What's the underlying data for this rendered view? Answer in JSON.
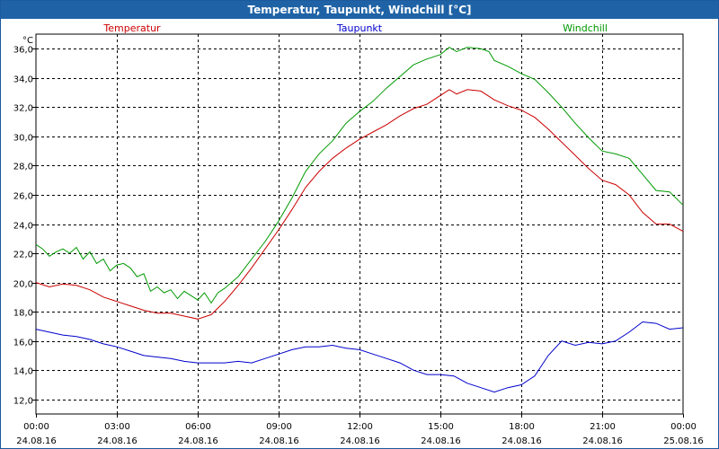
{
  "window": {
    "title": "Temperatur, Taupunkt, Windchill [°C]"
  },
  "chart_data": {
    "type": "line",
    "title": "Temperatur, Taupunkt, Windchill [°C]",
    "ylabel": "°C",
    "xlabel": "",
    "ylim": [
      11,
      37
    ],
    "xlim": [
      0,
      24
    ],
    "x_unit": "hours since 24.08.16 00:00",
    "grid": true,
    "legend": "top",
    "x_ticks": [
      {
        "x": 0,
        "time": "00:00",
        "date": "24.08.16"
      },
      {
        "x": 3,
        "time": "03:00",
        "date": "24.08.16"
      },
      {
        "x": 6,
        "time": "06:00",
        "date": "24.08.16"
      },
      {
        "x": 9,
        "time": "09:00",
        "date": "24.08.16"
      },
      {
        "x": 12,
        "time": "12:00",
        "date": "24.08.16"
      },
      {
        "x": 15,
        "time": "15:00",
        "date": "24.08.16"
      },
      {
        "x": 18,
        "time": "18:00",
        "date": "24.08.16"
      },
      {
        "x": 21,
        "time": "21:00",
        "date": "24.08.16"
      },
      {
        "x": 24,
        "time": "00:00",
        "date": "25.08.16"
      }
    ],
    "y_ticks": [
      {
        "v": 12,
        "label": "12,0"
      },
      {
        "v": 14,
        "label": "14,0"
      },
      {
        "v": 16,
        "label": "16,0"
      },
      {
        "v": 18,
        "label": "18,0"
      },
      {
        "v": 20,
        "label": "20,0"
      },
      {
        "v": 22,
        "label": "22,0"
      },
      {
        "v": 24,
        "label": "24,0"
      },
      {
        "v": 26,
        "label": "26,0"
      },
      {
        "v": 28,
        "label": "28,0"
      },
      {
        "v": 30,
        "label": "30,0"
      },
      {
        "v": 32,
        "label": "32,0"
      },
      {
        "v": 34,
        "label": "34,0"
      },
      {
        "v": 36,
        "label": "36,0"
      }
    ],
    "series": [
      {
        "name": "Temperatur",
        "color": "#cc0000",
        "legend_pos": "left",
        "points": [
          [
            0,
            20.0
          ],
          [
            0.5,
            19.7
          ],
          [
            1,
            19.9
          ],
          [
            1.5,
            19.8
          ],
          [
            2,
            19.5
          ],
          [
            2.5,
            19.0
          ],
          [
            3,
            18.7
          ],
          [
            3.5,
            18.4
          ],
          [
            4,
            18.1
          ],
          [
            4.5,
            17.9
          ],
          [
            5,
            17.9
          ],
          [
            5.5,
            17.7
          ],
          [
            6,
            17.5
          ],
          [
            6.5,
            17.8
          ],
          [
            7,
            18.7
          ],
          [
            7.5,
            19.8
          ],
          [
            8,
            21.0
          ],
          [
            8.5,
            22.3
          ],
          [
            9,
            23.6
          ],
          [
            9.5,
            25.0
          ],
          [
            10,
            26.5
          ],
          [
            10.5,
            27.6
          ],
          [
            11,
            28.5
          ],
          [
            11.5,
            29.2
          ],
          [
            12,
            29.8
          ],
          [
            12.5,
            30.3
          ],
          [
            13,
            30.8
          ],
          [
            13.5,
            31.4
          ],
          [
            14,
            31.9
          ],
          [
            14.5,
            32.2
          ],
          [
            15,
            32.8
          ],
          [
            15.33,
            33.2
          ],
          [
            15.6,
            32.9
          ],
          [
            16,
            33.2
          ],
          [
            16.5,
            33.1
          ],
          [
            17,
            32.5
          ],
          [
            17.5,
            32.1
          ],
          [
            18,
            31.8
          ],
          [
            18.5,
            31.3
          ],
          [
            19,
            30.5
          ],
          [
            19.5,
            29.6
          ],
          [
            20,
            28.7
          ],
          [
            20.5,
            27.8
          ],
          [
            21,
            27.0
          ],
          [
            21.5,
            26.7
          ],
          [
            22,
            26.0
          ],
          [
            22.5,
            24.8
          ],
          [
            23,
            24.0
          ],
          [
            23.5,
            24.0
          ],
          [
            24,
            23.5
          ]
        ]
      },
      {
        "name": "Taupunkt",
        "color": "#0000cc",
        "legend_pos": "center",
        "points": [
          [
            0,
            16.8
          ],
          [
            0.5,
            16.6
          ],
          [
            1,
            16.4
          ],
          [
            1.5,
            16.3
          ],
          [
            2,
            16.1
          ],
          [
            2.5,
            15.8
          ],
          [
            3,
            15.6
          ],
          [
            3.5,
            15.3
          ],
          [
            4,
            15.0
          ],
          [
            4.5,
            14.9
          ],
          [
            5,
            14.8
          ],
          [
            5.5,
            14.6
          ],
          [
            6,
            14.5
          ],
          [
            6.5,
            14.5
          ],
          [
            7,
            14.5
          ],
          [
            7.5,
            14.6
          ],
          [
            8,
            14.5
          ],
          [
            8.5,
            14.8
          ],
          [
            9,
            15.1
          ],
          [
            9.5,
            15.4
          ],
          [
            10,
            15.6
          ],
          [
            10.5,
            15.6
          ],
          [
            11,
            15.7
          ],
          [
            11.5,
            15.5
          ],
          [
            12,
            15.4
          ],
          [
            12.5,
            15.1
          ],
          [
            13,
            14.8
          ],
          [
            13.5,
            14.5
          ],
          [
            14,
            14.0
          ],
          [
            14.5,
            13.7
          ],
          [
            15,
            13.7
          ],
          [
            15.5,
            13.6
          ],
          [
            16,
            13.1
          ],
          [
            16.5,
            12.8
          ],
          [
            17,
            12.5
          ],
          [
            17.5,
            12.8
          ],
          [
            18,
            13.0
          ],
          [
            18.5,
            13.6
          ],
          [
            19,
            15.0
          ],
          [
            19.5,
            16.0
          ],
          [
            20,
            15.7
          ],
          [
            20.5,
            15.9
          ],
          [
            21,
            15.8
          ],
          [
            21.5,
            16.0
          ],
          [
            22,
            16.6
          ],
          [
            22.5,
            17.3
          ],
          [
            23,
            17.2
          ],
          [
            23.5,
            16.8
          ],
          [
            24,
            16.9
          ]
        ]
      },
      {
        "name": "Windchill",
        "color": "#009900",
        "legend_pos": "right",
        "points": [
          [
            0,
            22.6
          ],
          [
            0.25,
            22.3
          ],
          [
            0.5,
            21.8
          ],
          [
            0.75,
            22.1
          ],
          [
            1,
            22.3
          ],
          [
            1.25,
            22.0
          ],
          [
            1.5,
            22.4
          ],
          [
            1.75,
            21.6
          ],
          [
            2,
            22.1
          ],
          [
            2.25,
            21.3
          ],
          [
            2.5,
            21.6
          ],
          [
            2.75,
            20.8
          ],
          [
            3,
            21.2
          ],
          [
            3.25,
            21.3
          ],
          [
            3.5,
            21.0
          ],
          [
            3.75,
            20.4
          ],
          [
            4,
            20.6
          ],
          [
            4.25,
            19.4
          ],
          [
            4.5,
            19.7
          ],
          [
            4.75,
            19.3
          ],
          [
            5,
            19.5
          ],
          [
            5.25,
            18.9
          ],
          [
            5.5,
            19.4
          ],
          [
            5.75,
            19.1
          ],
          [
            6,
            18.8
          ],
          [
            6.25,
            19.3
          ],
          [
            6.5,
            18.6
          ],
          [
            6.75,
            19.3
          ],
          [
            7,
            19.6
          ],
          [
            7.5,
            20.4
          ],
          [
            8,
            21.6
          ],
          [
            8.5,
            22.8
          ],
          [
            9,
            24.2
          ],
          [
            9.5,
            25.8
          ],
          [
            10,
            27.6
          ],
          [
            10.5,
            28.8
          ],
          [
            11,
            29.7
          ],
          [
            11.5,
            30.9
          ],
          [
            12,
            31.7
          ],
          [
            12.5,
            32.4
          ],
          [
            13,
            33.3
          ],
          [
            13.5,
            34.1
          ],
          [
            14,
            34.9
          ],
          [
            14.5,
            35.3
          ],
          [
            15,
            35.6
          ],
          [
            15.33,
            36.1
          ],
          [
            15.6,
            35.8
          ],
          [
            16,
            36.1
          ],
          [
            16.5,
            36.0
          ],
          [
            16.8,
            35.8
          ],
          [
            17,
            35.2
          ],
          [
            17.5,
            34.8
          ],
          [
            18,
            34.3
          ],
          [
            18.5,
            33.9
          ],
          [
            19,
            33.0
          ],
          [
            19.5,
            32.0
          ],
          [
            20,
            30.9
          ],
          [
            20.5,
            29.9
          ],
          [
            21,
            29.0
          ],
          [
            21.5,
            28.8
          ],
          [
            22,
            28.5
          ],
          [
            22.5,
            27.4
          ],
          [
            23,
            26.3
          ],
          [
            23.5,
            26.2
          ],
          [
            24,
            25.3
          ]
        ]
      }
    ]
  }
}
